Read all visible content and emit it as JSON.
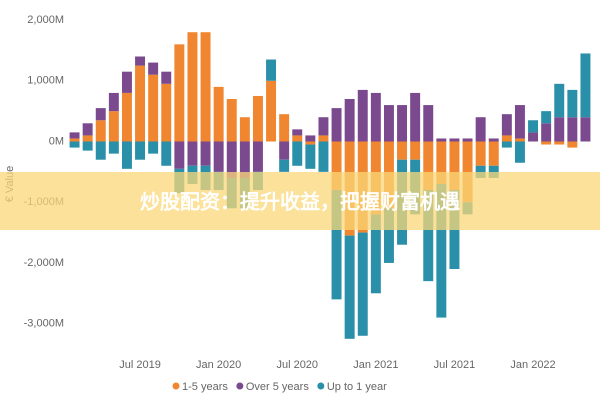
{
  "chart_data": {
    "type": "stacked-bar",
    "y_label": "€ Value",
    "annotation": "炒股配资：提升收益，把握财富机遇",
    "categories": [
      null,
      null,
      null,
      null,
      null,
      "Jul 2019",
      null,
      null,
      null,
      null,
      null,
      "Jan 2020",
      null,
      null,
      null,
      null,
      null,
      "Jul 2020",
      null,
      null,
      null,
      null,
      null,
      "Jan 2021",
      null,
      null,
      null,
      null,
      null,
      "Jul 2021",
      null,
      null,
      null,
      null,
      null,
      "Jan 2022",
      null,
      null,
      null,
      null
    ],
    "series": [
      {
        "name": "1-5 years",
        "color": "#f0862f",
        "values": [
          50,
          100,
          350,
          500,
          800,
          1250,
          1100,
          950,
          1600,
          1800,
          1800,
          900,
          700,
          400,
          750,
          1000,
          450,
          100,
          -50,
          100,
          -800,
          -1550,
          -1500,
          -1200,
          -1100,
          -300,
          -300,
          -800,
          -700,
          -800,
          -1000,
          -400,
          -400,
          100,
          50,
          0,
          -50,
          -50,
          -100,
          0
        ]
      },
      {
        "name": "Over 5 years",
        "color": "#7b4a8e",
        "values": [
          100,
          200,
          200,
          300,
          350,
          150,
          200,
          200,
          -450,
          -400,
          -400,
          -500,
          -600,
          -600,
          -500,
          0,
          -300,
          100,
          100,
          300,
          550,
          700,
          850,
          800,
          600,
          600,
          800,
          600,
          50,
          50,
          50,
          400,
          50,
          350,
          550,
          150,
          300,
          400,
          400,
          400
        ]
      },
      {
        "name": "Up to 1 year",
        "color": "#2a8fa8",
        "values": [
          -100,
          -150,
          -300,
          -200,
          -450,
          -300,
          -200,
          -400,
          -400,
          -300,
          -400,
          -300,
          -500,
          -500,
          -300,
          350,
          -200,
          -400,
          -400,
          -500,
          -1800,
          -1700,
          -1700,
          -1300,
          -900,
          -1400,
          -900,
          -1500,
          -2200,
          -1300,
          -200,
          -200,
          -200,
          -100,
          -350,
          200,
          200,
          550,
          450,
          1050
        ]
      }
    ],
    "ylim": [
      -3500,
      2100
    ],
    "yticks": [
      {
        "value": 2000,
        "label": "2,000M"
      },
      {
        "value": 1000,
        "label": "1,000M"
      },
      {
        "value": 0,
        "label": "0M"
      },
      {
        "value": -1000,
        "label": "-1,000M"
      },
      {
        "value": -2000,
        "label": "-2,000M"
      },
      {
        "value": -3000,
        "label": "-3,000M"
      }
    ],
    "grid": false,
    "legend": "bottom"
  }
}
